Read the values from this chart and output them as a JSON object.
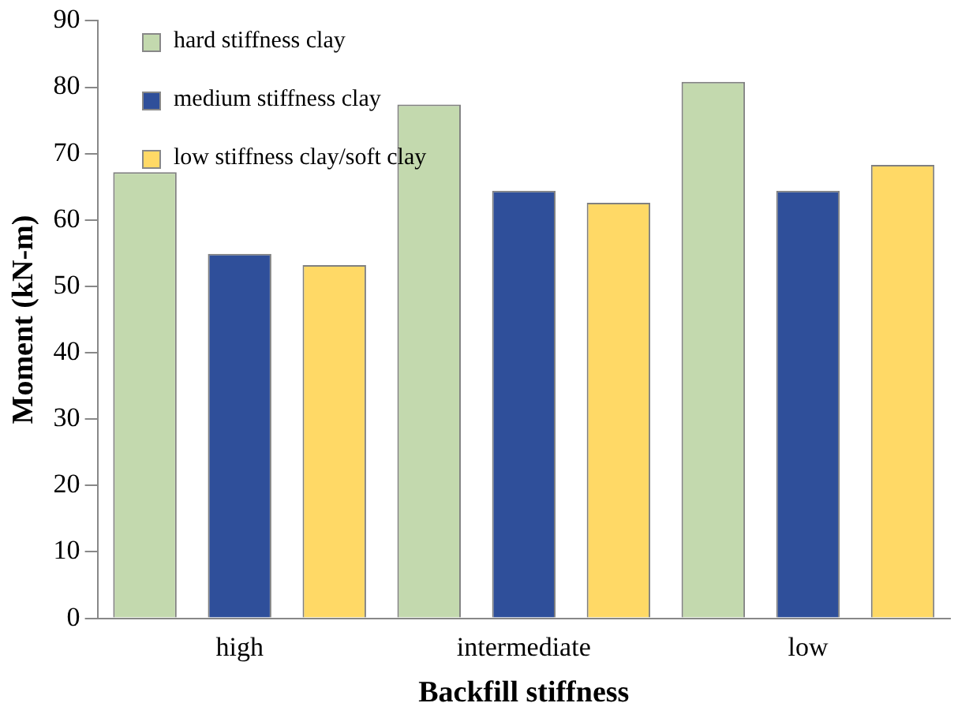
{
  "chart_data": {
    "type": "bar",
    "xlabel": "Backfill stiffness",
    "ylabel": "Moment (kN-m)",
    "categories": [
      "high",
      "intermediate",
      "low"
    ],
    "series": [
      {
        "name": "hard stiffness clay",
        "color": "#c3d9ae",
        "values": [
          67.2,
          77.4,
          80.8
        ]
      },
      {
        "name": "medium stiffness clay",
        "color": "#2f4f9a",
        "values": [
          54.9,
          64.4,
          64.4
        ]
      },
      {
        "name": "low stiffness clay/soft clay",
        "color": "#ffd966",
        "values": [
          53.2,
          62.6,
          68.3
        ]
      }
    ],
    "ylim": [
      0,
      90
    ],
    "yticks": [
      0,
      10,
      20,
      30,
      40,
      50,
      60,
      70,
      80,
      90
    ],
    "grid": false,
    "legend": "top left"
  }
}
